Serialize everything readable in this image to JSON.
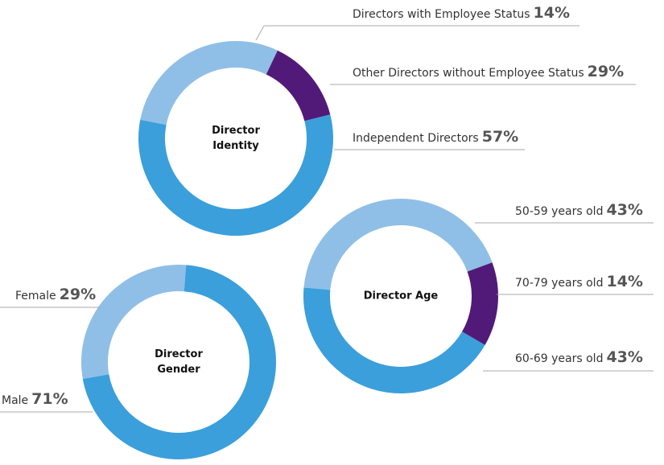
{
  "chart_data": [
    {
      "type": "pie",
      "title": "Director Identity",
      "categories": [
        "Other Directors without Employee Status",
        "Directors with Employee Status",
        "Independent Directors"
      ],
      "values": [
        29,
        14,
        57
      ],
      "value_labels": [
        "29%",
        "14%",
        "57%"
      ],
      "colors": [
        "#8fbfe6",
        "#521a78",
        "#3a9fdb"
      ]
    },
    {
      "type": "pie",
      "title": "Director Age",
      "categories": [
        "50-59 years old",
        "70-79 years old",
        "60-69 years old"
      ],
      "values": [
        43,
        14,
        43
      ],
      "value_labels": [
        "43%",
        "14%",
        "43%"
      ],
      "colors": [
        "#8fbfe6",
        "#521a78",
        "#3a9fdb"
      ]
    },
    {
      "type": "pie",
      "title": "Director Gender",
      "categories": [
        "Female",
        "Male"
      ],
      "values": [
        29,
        71
      ],
      "value_labels": [
        "29%",
        "71%"
      ],
      "colors": [
        "#8fbfe6",
        "#3a9fdb"
      ]
    }
  ]
}
